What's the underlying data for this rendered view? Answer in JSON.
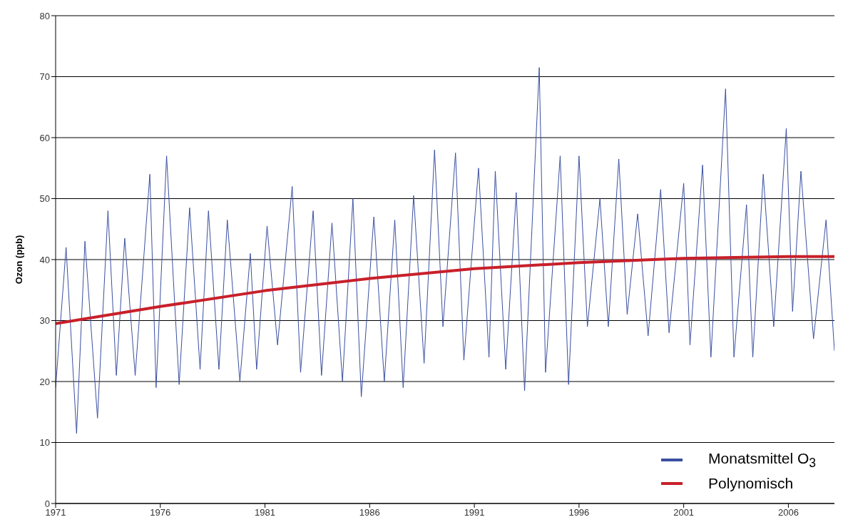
{
  "chart_data": {
    "type": "line",
    "ylabel": "Ozon (ppb)",
    "xlim": [
      1971,
      2008.2
    ],
    "xticks": [
      1971,
      1976,
      1981,
      1986,
      1991,
      1996,
      2001,
      2006
    ],
    "ylim": [
      0,
      80
    ],
    "yticks": [
      0,
      10,
      20,
      30,
      40,
      50,
      60,
      70,
      80
    ],
    "grid": "y",
    "legend": "bottom right",
    "marker": "none",
    "series": [
      {
        "name": "Monatsmittel O$_{3}$",
        "color": "#3a4fa0",
        "x": [
          1971.0,
          1971.5,
          1972.0,
          1972.4,
          1973.0,
          1973.5,
          1973.9,
          1974.3,
          1974.8,
          1975.5,
          1975.8,
          1976.3,
          1976.9,
          1977.4,
          1977.9,
          1978.3,
          1978.8,
          1979.2,
          1979.8,
          1980.3,
          1980.6,
          1981.1,
          1981.6,
          1982.3,
          1982.7,
          1983.3,
          1983.7,
          1984.2,
          1984.7,
          1985.2,
          1985.6,
          1986.2,
          1986.7,
          1987.2,
          1987.6,
          1988.1,
          1988.6,
          1989.1,
          1989.5,
          1990.1,
          1990.5,
          1991.2,
          1991.7,
          1992.0,
          1992.5,
          1993.0,
          1993.4,
          1994.1,
          1994.4,
          1995.1,
          1995.5,
          1996.0,
          1996.4,
          1997.0,
          1997.4,
          1997.9,
          1998.3,
          1998.8,
          1999.3,
          1999.9,
          2000.3,
          2001.0,
          2001.3,
          2001.9,
          2002.3,
          2003.0,
          2003.4,
          2004.0,
          2004.3,
          2004.8,
          2005.3,
          2005.9,
          2006.2,
          2006.6,
          2007.2,
          2007.8,
          2008.2
        ],
        "values": [
          19,
          42,
          11.5,
          43,
          14,
          48,
          21,
          43.5,
          21,
          54,
          19,
          57,
          19.5,
          48.5,
          22,
          48,
          22,
          46.5,
          20,
          41,
          22,
          45.5,
          26,
          52,
          21.5,
          48,
          21,
          46,
          20,
          50,
          17.5,
          47,
          20,
          46.5,
          19,
          50.5,
          23,
          58,
          29,
          57.5,
          23.5,
          55,
          24,
          54.5,
          22,
          51,
          18.5,
          71.5,
          21.5,
          57,
          19.5,
          57,
          29,
          50,
          29,
          56.5,
          31,
          47.5,
          27.5,
          51.5,
          28,
          52.5,
          26,
          55.5,
          24,
          68,
          24,
          49,
          24,
          54,
          29,
          61.5,
          31.5,
          54.5,
          27,
          46.5,
          25
        ]
      },
      {
        "name": "Polynomisch",
        "color": "#c8202a",
        "x": [
          1971,
          1976,
          1981,
          1986,
          1991,
          1996,
          2001,
          2006,
          2008.2
        ],
        "values": [
          29.5,
          32.3,
          34.9,
          36.9,
          38.5,
          39.5,
          40.2,
          40.5,
          40.5
        ]
      }
    ]
  }
}
